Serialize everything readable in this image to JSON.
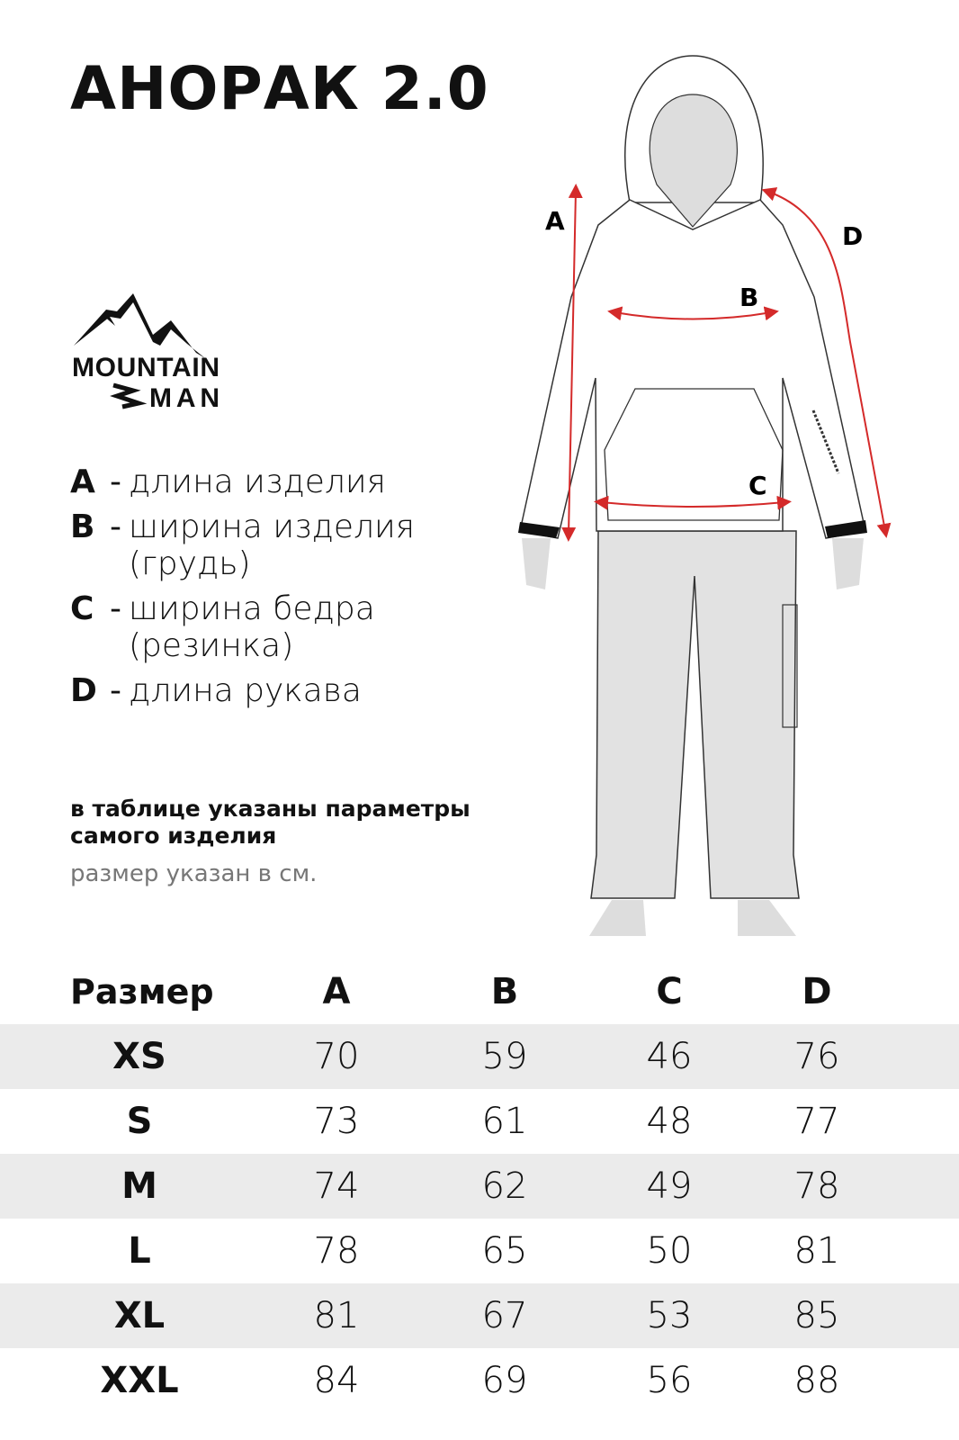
{
  "title": "АНОРАК 2.0",
  "logo": {
    "text_line1": "MOUNTAIN",
    "text_line2": "MAN"
  },
  "legend": [
    {
      "key": "A",
      "desc": "длина изделия"
    },
    {
      "key": "B",
      "desc": "ширина изделия (грудь)"
    },
    {
      "key": "C",
      "desc": "ширина бедра (резинка)"
    },
    {
      "key": "D",
      "desc": "длина рукава"
    }
  ],
  "note": "в таблице указаны параметры самого изделия",
  "unit_note": "размер указан в см.",
  "figure": {
    "labels": {
      "a": "A",
      "b": "B",
      "c": "C",
      "d": "D"
    },
    "accent_color": "#d42a2a"
  },
  "table": {
    "headers": [
      "Размер",
      "A",
      "B",
      "C",
      "D"
    ],
    "rows": [
      [
        "XS",
        "70",
        "59",
        "46",
        "76"
      ],
      [
        "S",
        "73",
        "61",
        "48",
        "77"
      ],
      [
        "M",
        "74",
        "62",
        "49",
        "78"
      ],
      [
        "L",
        "78",
        "65",
        "50",
        "81"
      ],
      [
        "XL",
        "81",
        "67",
        "53",
        "85"
      ],
      [
        "XXL",
        "84",
        "69",
        "56",
        "88"
      ]
    ]
  }
}
